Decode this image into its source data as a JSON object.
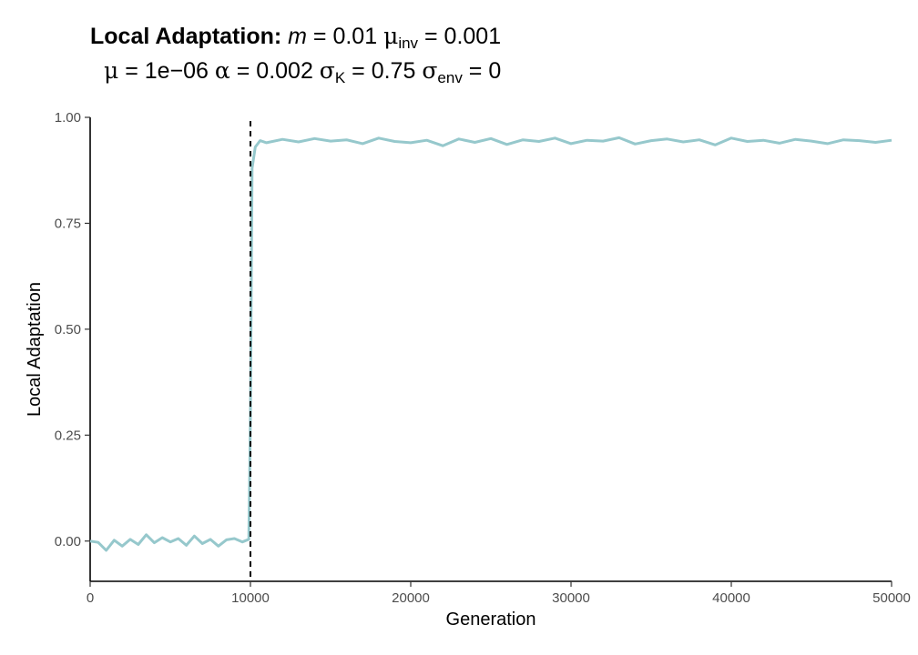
{
  "title": {
    "bold": "Local Adaptation:",
    "m_symbol": "m",
    "m_value": " = 0.01 ",
    "mu_inv_symbol": "μ",
    "mu_inv_sub": "inv",
    "mu_inv_value": " = 0.001"
  },
  "subtitle": {
    "mu_symbol": "μ",
    "mu_value": " = 1e−06 ",
    "alpha_symbol": "α",
    "alpha_value": " = 0.002 ",
    "sigmaK_symbol": "σ",
    "sigmaK_sub": "K",
    "sigmaK_value": " = 0.75 ",
    "sigmaEnv_symbol": "σ",
    "sigmaEnv_sub": "env",
    "sigmaEnv_value": " = 0"
  },
  "chart_data": {
    "type": "line",
    "xlabel": "Generation",
    "ylabel": "Local Adaptation",
    "xlim": [
      0,
      50000
    ],
    "ylim": [
      -0.095,
      1.0
    ],
    "xticks": [
      0,
      10000,
      20000,
      30000,
      40000,
      50000
    ],
    "xtick_labels": [
      "0",
      "10000",
      "20000",
      "30000",
      "40000",
      "50000"
    ],
    "yticks": [
      0.0,
      0.25,
      0.5,
      0.75,
      1.0
    ],
    "ytick_labels": [
      "0.00",
      "0.25",
      "0.50",
      "0.75",
      "1.00"
    ],
    "grid": false,
    "vline": {
      "x": 10000,
      "style": "dashed",
      "color": "#000000"
    },
    "series": [
      {
        "color": "#96c8cc",
        "x": [
          0,
          500,
          1000,
          1500,
          2000,
          2500,
          3000,
          3500,
          4000,
          4500,
          5000,
          5500,
          6000,
          6500,
          7000,
          7500,
          8000,
          8500,
          9000,
          9500,
          9900,
          10000,
          10100,
          10300,
          10600,
          11000,
          12000,
          13000,
          14000,
          15000,
          16000,
          17000,
          18000,
          19000,
          20000,
          21000,
          22000,
          23000,
          24000,
          25000,
          26000,
          27000,
          28000,
          29000,
          30000,
          31000,
          32000,
          33000,
          34000,
          35000,
          36000,
          37000,
          38000,
          39000,
          40000,
          41000,
          42000,
          43000,
          44000,
          45000,
          46000,
          47000,
          48000,
          49000,
          50000
        ],
        "y": [
          0.0,
          -0.003,
          -0.022,
          0.002,
          -0.012,
          0.004,
          -0.008,
          0.015,
          -0.004,
          0.008,
          -0.002,
          0.006,
          -0.01,
          0.012,
          -0.006,
          0.004,
          -0.012,
          0.003,
          0.006,
          -0.002,
          0.004,
          0.3,
          0.88,
          0.93,
          0.945,
          0.94,
          0.948,
          0.942,
          0.95,
          0.944,
          0.947,
          0.938,
          0.951,
          0.943,
          0.94,
          0.946,
          0.933,
          0.949,
          0.941,
          0.95,
          0.936,
          0.947,
          0.943,
          0.951,
          0.938,
          0.946,
          0.944,
          0.952,
          0.937,
          0.945,
          0.949,
          0.942,
          0.947,
          0.935,
          0.951,
          0.943,
          0.946,
          0.939,
          0.948,
          0.944,
          0.938,
          0.947,
          0.945,
          0.941,
          0.946
        ]
      }
    ]
  }
}
